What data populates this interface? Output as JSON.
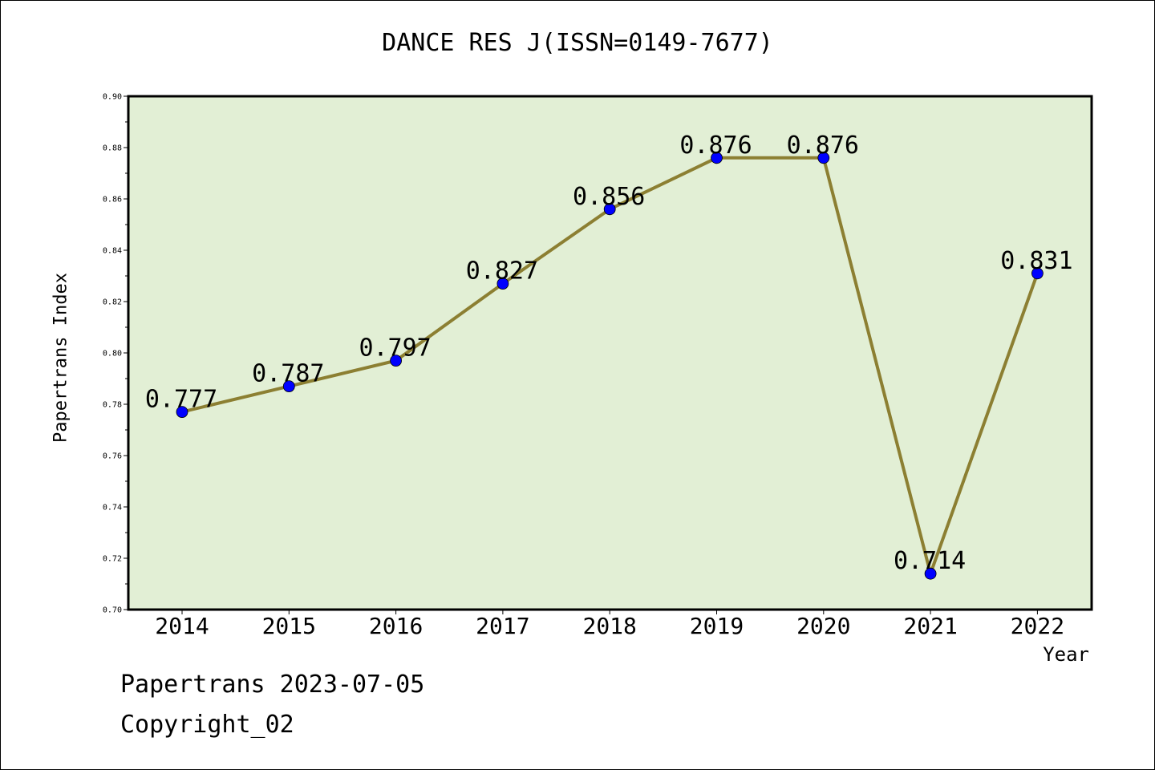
{
  "chart_data": {
    "type": "line",
    "title": "DANCE RES J(ISSN=0149-7677)",
    "xlabel": "Year",
    "ylabel": "Papertrans Index",
    "categories": [
      "2014",
      "2015",
      "2016",
      "2017",
      "2018",
      "2019",
      "2020",
      "2021",
      "2022"
    ],
    "series": [
      {
        "values": [
          0.777,
          0.787,
          0.797,
          0.827,
          0.856,
          0.876,
          0.876,
          0.714,
          0.831
        ]
      }
    ],
    "data_labels": [
      "0.777",
      "0.787",
      "0.797",
      "0.827",
      "0.856",
      "0.876",
      "0.876",
      "0.714",
      "0.831"
    ],
    "ylim": [
      0.7,
      0.9
    ],
    "yticks": [
      "0.70",
      "0.72",
      "0.74",
      "0.76",
      "0.78",
      "0.80",
      "0.82",
      "0.84",
      "0.86",
      "0.88",
      "0.90"
    ],
    "grid": false,
    "colors": {
      "plot_bg": "#e2efd5",
      "line": "#8c7f32",
      "marker": "#0000ff"
    }
  },
  "footer": {
    "line1": "Papertrans 2023-07-05",
    "line2": "Copyright_02"
  }
}
